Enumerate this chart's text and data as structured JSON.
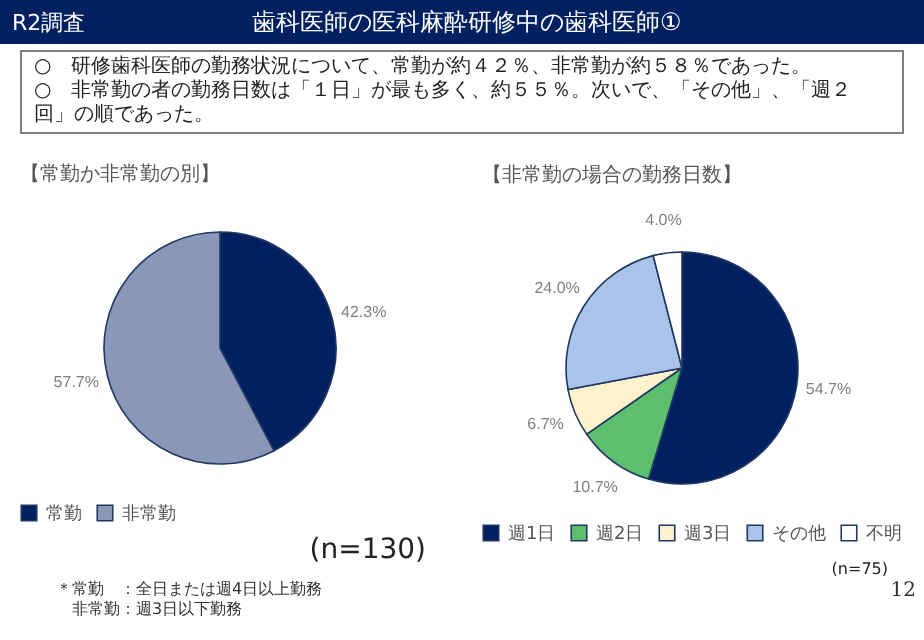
{
  "chart_data": [
    {
      "type": "other",
      "subtitle": "R2調査",
      "title": "歯科医師の医科麻酔研修中の歯科医師①",
      "annotations": [
        "○　研修歯科医師の勤務状況について、常勤が約４２％、非常勤が約５８％であった。",
        "○　非常勤の者の勤務日数は「１日」が最も多く、約５５％。次いで、「その他」、「週２回」の順であった。"
      ]
    },
    {
      "type": "pie",
      "title": "【常勤か非常勤の別】",
      "categories": [
        "常勤",
        "非常勤"
      ],
      "values": [
        42.3,
        57.7
      ],
      "colors": [
        "#002060",
        "#8a97b8"
      ],
      "value_labels": [
        "42.3%",
        "57.7%"
      ],
      "legend": "bottom",
      "annotations": [
        "(n=130)",
        "＊常勤　：全日または週4日以上勤務",
        "　非常勤：週3日以下勤務"
      ]
    },
    {
      "type": "pie",
      "title": "【非常勤の場合の勤務日数】",
      "categories": [
        "週1日",
        "週2日",
        "週3日",
        "その他",
        "不明"
      ],
      "values": [
        54.7,
        10.7,
        6.7,
        24.0,
        4.0
      ],
      "colors": [
        "#002060",
        "#5cbf6e",
        "#fff2cc",
        "#a9c4e8",
        "#ffffff"
      ],
      "value_labels": [
        "54.7%",
        "10.7%",
        "6.7%",
        "24.0%",
        "4.0%"
      ],
      "legend": "bottom",
      "annotations": [
        "(n=75)",
        "12"
      ]
    }
  ]
}
